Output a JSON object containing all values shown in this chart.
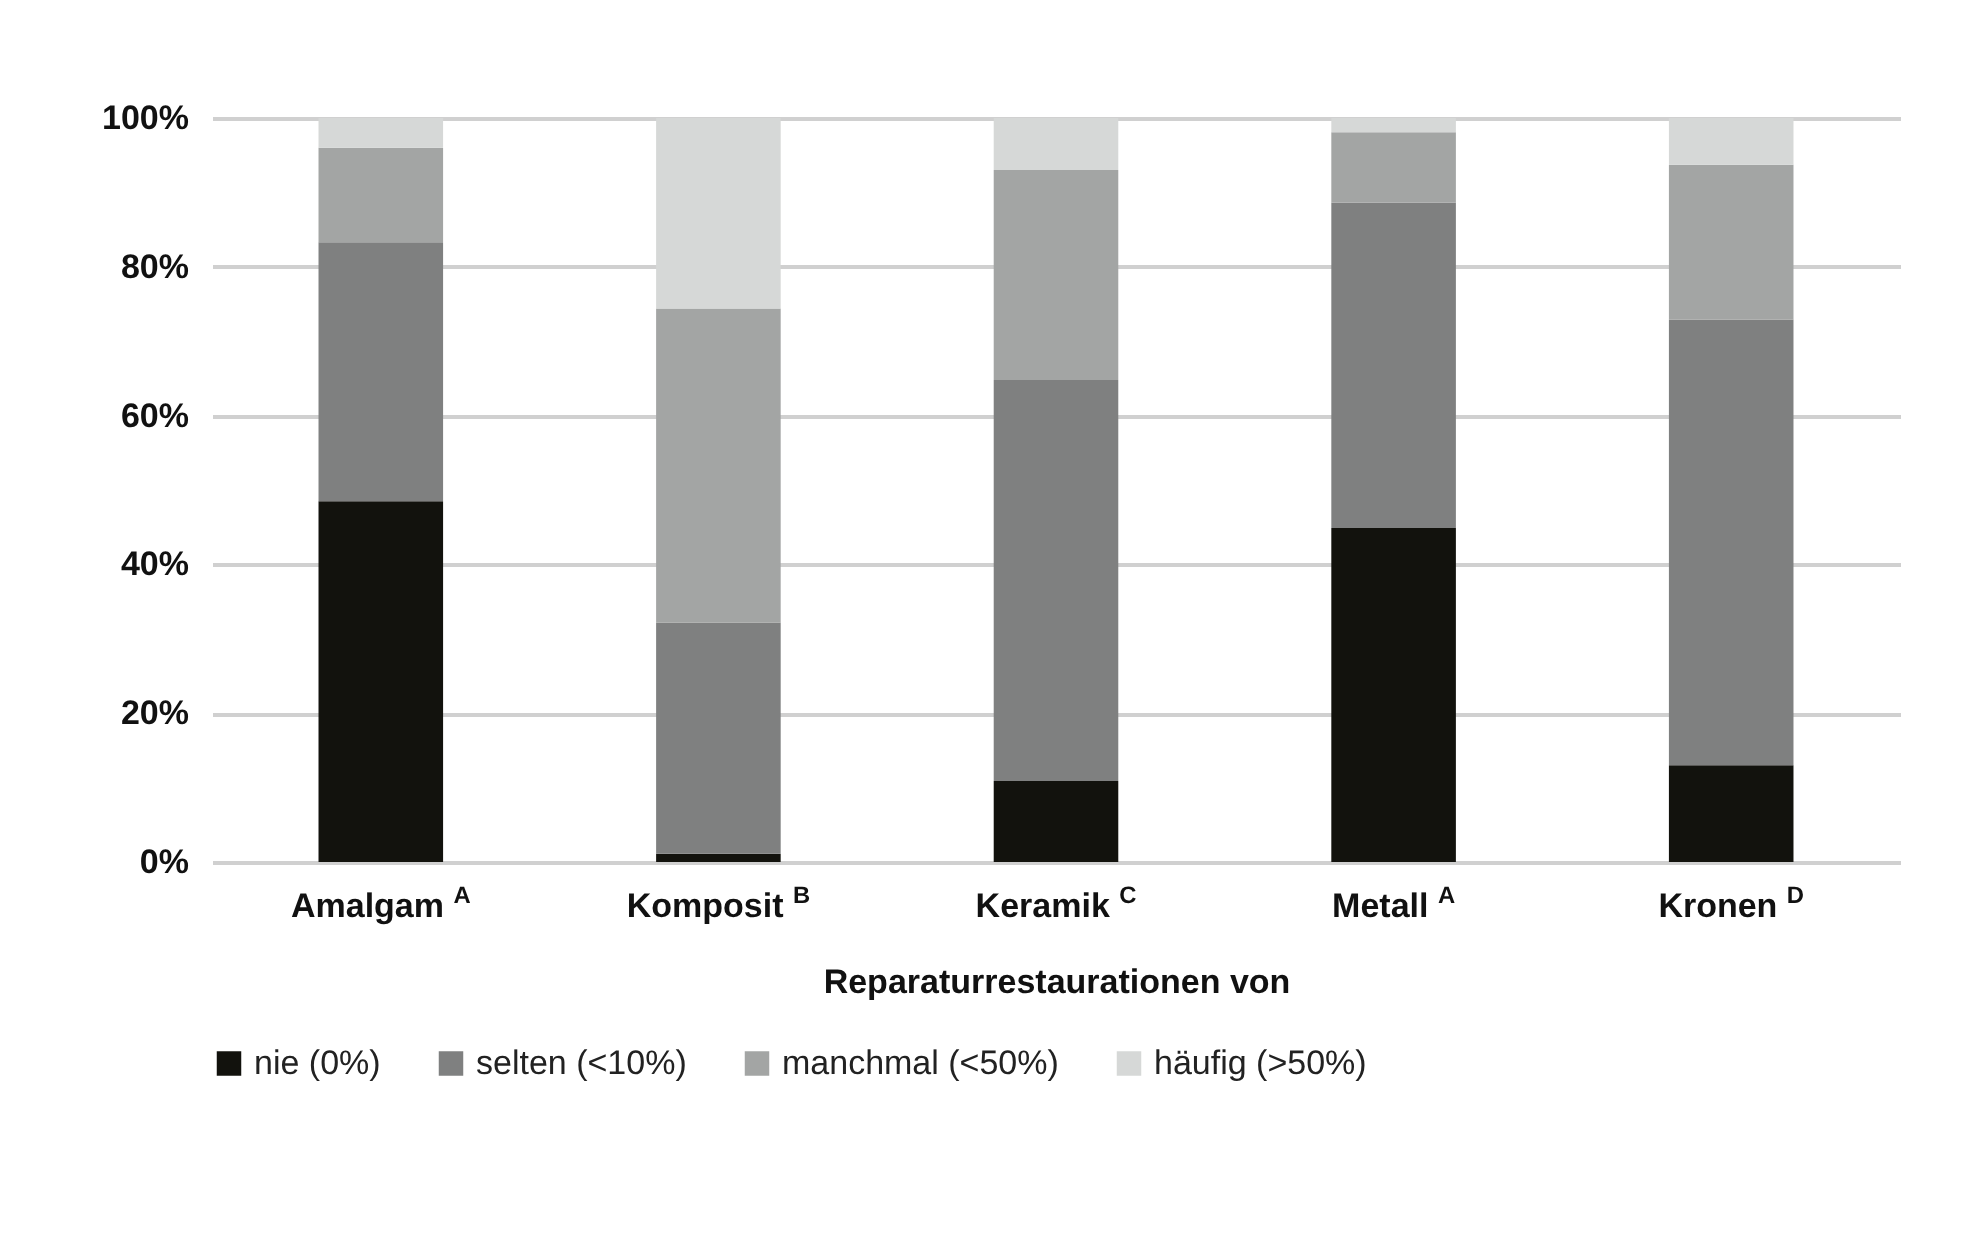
{
  "chart_data": {
    "type": "bar",
    "stacked": true,
    "xlabel": "Reparaturrestaurationen von",
    "categories": [
      "Amalgam $^{A}$",
      "Komposit $^{B}$",
      "Keramik $^{C}$",
      "Metall $^{A}$",
      "Kronen $^{D}$"
    ],
    "series": [
      {
        "name": "nie (0%)",
        "color": "#12120d",
        "values": [
          48.5,
          1.1,
          10.9,
          44.9,
          13.0
        ]
      },
      {
        "name": "selten (<10%)",
        "color": "#7f8080",
        "values": [
          34.8,
          31.1,
          53.9,
          43.7,
          59.9
        ]
      },
      {
        "name": "manchmal (<50%)",
        "color": "#a3a5a4",
        "values": [
          12.7,
          42.2,
          28.2,
          9.5,
          20.8
        ]
      },
      {
        "name": "häufig (>50%)",
        "color": "#d6d8d7",
        "values": [
          4.0,
          25.6,
          7.0,
          1.9,
          6.3
        ]
      }
    ],
    "ylim": [
      0,
      100
    ],
    "yticks": [
      {
        "value": 0,
        "label": "0%"
      },
      {
        "value": 20,
        "label": "20%"
      },
      {
        "value": 40,
        "label": "40%"
      },
      {
        "value": 60,
        "label": "60%"
      },
      {
        "value": 80,
        "label": "80%"
      },
      {
        "value": 100,
        "label": "100%"
      }
    ],
    "grid": "y",
    "legend": "bottom"
  }
}
